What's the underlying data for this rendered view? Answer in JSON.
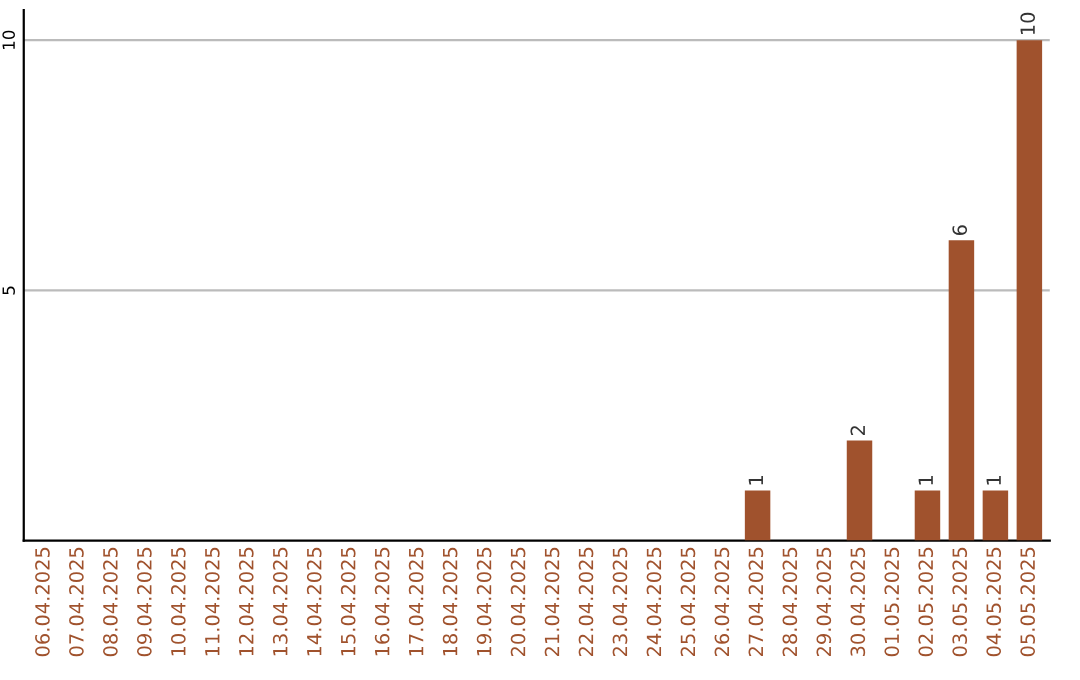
{
  "chart_data": {
    "type": "bar",
    "categories": [
      "06.04.2025",
      "07.04.2025",
      "08.04.2025",
      "09.04.2025",
      "10.04.2025",
      "11.04.2025",
      "12.04.2025",
      "13.04.2025",
      "14.04.2025",
      "15.04.2025",
      "16.04.2025",
      "17.04.2025",
      "18.04.2025",
      "19.04.2025",
      "20.04.2025",
      "21.04.2025",
      "22.04.2025",
      "23.04.2025",
      "24.04.2025",
      "25.04.2025",
      "26.04.2025",
      "27.04.2025",
      "28.04.2025",
      "29.04.2025",
      "30.04.2025",
      "01.05.2025",
      "02.05.2025",
      "03.05.2025",
      "04.05.2025",
      "05.05.2025"
    ],
    "values": [
      0,
      0,
      0,
      0,
      0,
      0,
      0,
      0,
      0,
      0,
      0,
      0,
      0,
      0,
      0,
      0,
      0,
      0,
      0,
      0,
      0,
      1,
      0,
      0,
      2,
      0,
      1,
      6,
      1,
      10
    ],
    "value_labels": [
      null,
      null,
      null,
      null,
      null,
      null,
      null,
      null,
      null,
      null,
      null,
      null,
      null,
      null,
      null,
      null,
      null,
      null,
      null,
      null,
      null,
      "1",
      null,
      null,
      "2",
      null,
      "1",
      "6",
      "1",
      "10"
    ],
    "color": "#a0522d",
    "ylim": [
      0,
      10.6
    ],
    "yticks": [
      5,
      10
    ],
    "grid": "y"
  }
}
